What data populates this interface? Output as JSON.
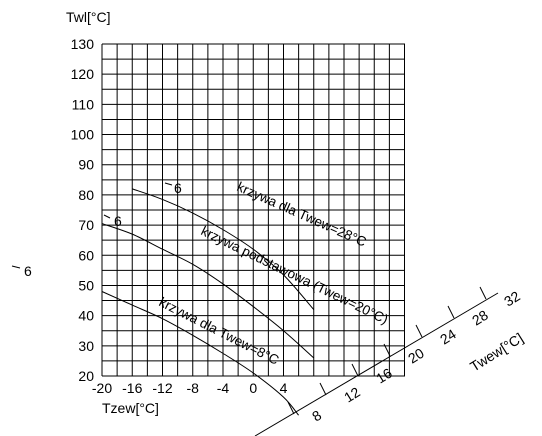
{
  "chart_data": {
    "type": "line",
    "ylabel": "Twl[°C]",
    "xlabel": "Tzew[°C]",
    "ylim": [
      20,
      130
    ],
    "xlim": [
      -20,
      8
    ],
    "grid": true,
    "y_ticks": [
      "130",
      "120",
      "110",
      "100",
      "90",
      "80",
      "70",
      "60",
      "50",
      "40",
      "30",
      "20"
    ],
    "x_ticks": [
      "-20",
      "-16",
      "-12",
      "-8",
      "-4",
      "0",
      "4"
    ],
    "x_tick_values": [
      -20,
      -16,
      -12,
      -8,
      -4,
      0,
      4
    ],
    "y_tick_values": [
      130,
      120,
      110,
      100,
      90,
      80,
      70,
      60,
      50,
      40,
      30,
      20
    ],
    "secondary_axis": {
      "label": "Twew[°C]",
      "ticks": [
        "8",
        "12",
        "16",
        "20",
        "24",
        "28",
        "32"
      ]
    },
    "series": [
      {
        "name": "krzywa dla Twew=28°C",
        "start_label": "6",
        "points": [
          [
            -16,
            82
          ],
          [
            -12,
            78.5
          ],
          [
            -8,
            74
          ],
          [
            -4,
            68.5
          ],
          [
            0,
            62
          ],
          [
            4,
            53.5
          ],
          [
            8,
            42
          ]
        ]
      },
      {
        "name": "krzywa podstawowa (Twew=20°C)",
        "start_label": "6",
        "points": [
          [
            -20,
            70.5
          ],
          [
            -16,
            67
          ],
          [
            -12,
            62
          ],
          [
            -8,
            57
          ],
          [
            -4,
            50.5
          ],
          [
            0,
            43
          ],
          [
            4,
            35
          ],
          [
            8,
            26
          ]
        ]
      },
      {
        "name": "krzywa dla Twew=8°C",
        "start_label": "6",
        "points": [
          [
            -20,
            48
          ],
          [
            -16,
            43.5
          ],
          [
            -12,
            39
          ],
          [
            -8,
            33.5
          ],
          [
            -4,
            27.5
          ],
          [
            0,
            21
          ],
          [
            4,
            13
          ],
          [
            6,
            7
          ]
        ]
      }
    ]
  }
}
